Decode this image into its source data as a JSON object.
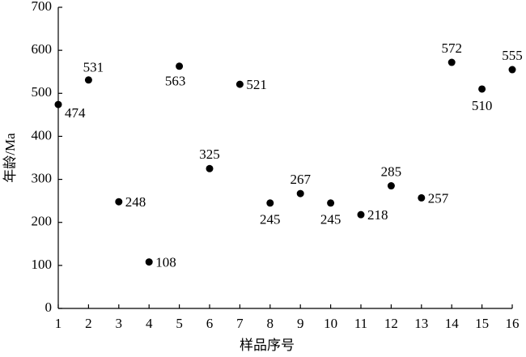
{
  "chart_data": {
    "type": "scatter",
    "x_label": "样品序号",
    "y_label": "年龄/Ma",
    "x": [
      1,
      2,
      3,
      4,
      5,
      6,
      7,
      8,
      9,
      10,
      11,
      12,
      13,
      14,
      15,
      16
    ],
    "values": [
      474,
      531,
      248,
      108,
      563,
      325,
      521,
      245,
      267,
      245,
      218,
      285,
      257,
      572,
      510,
      555
    ],
    "color": "#000000",
    "xlim": [
      1,
      16
    ],
    "xticks": [
      1,
      2,
      3,
      4,
      5,
      6,
      7,
      8,
      9,
      10,
      11,
      12,
      13,
      14,
      15,
      16
    ],
    "ylim": [
      0,
      700
    ],
    "yticks": [
      0,
      100,
      200,
      300,
      400,
      500,
      600,
      700
    ],
    "grid": false
  }
}
